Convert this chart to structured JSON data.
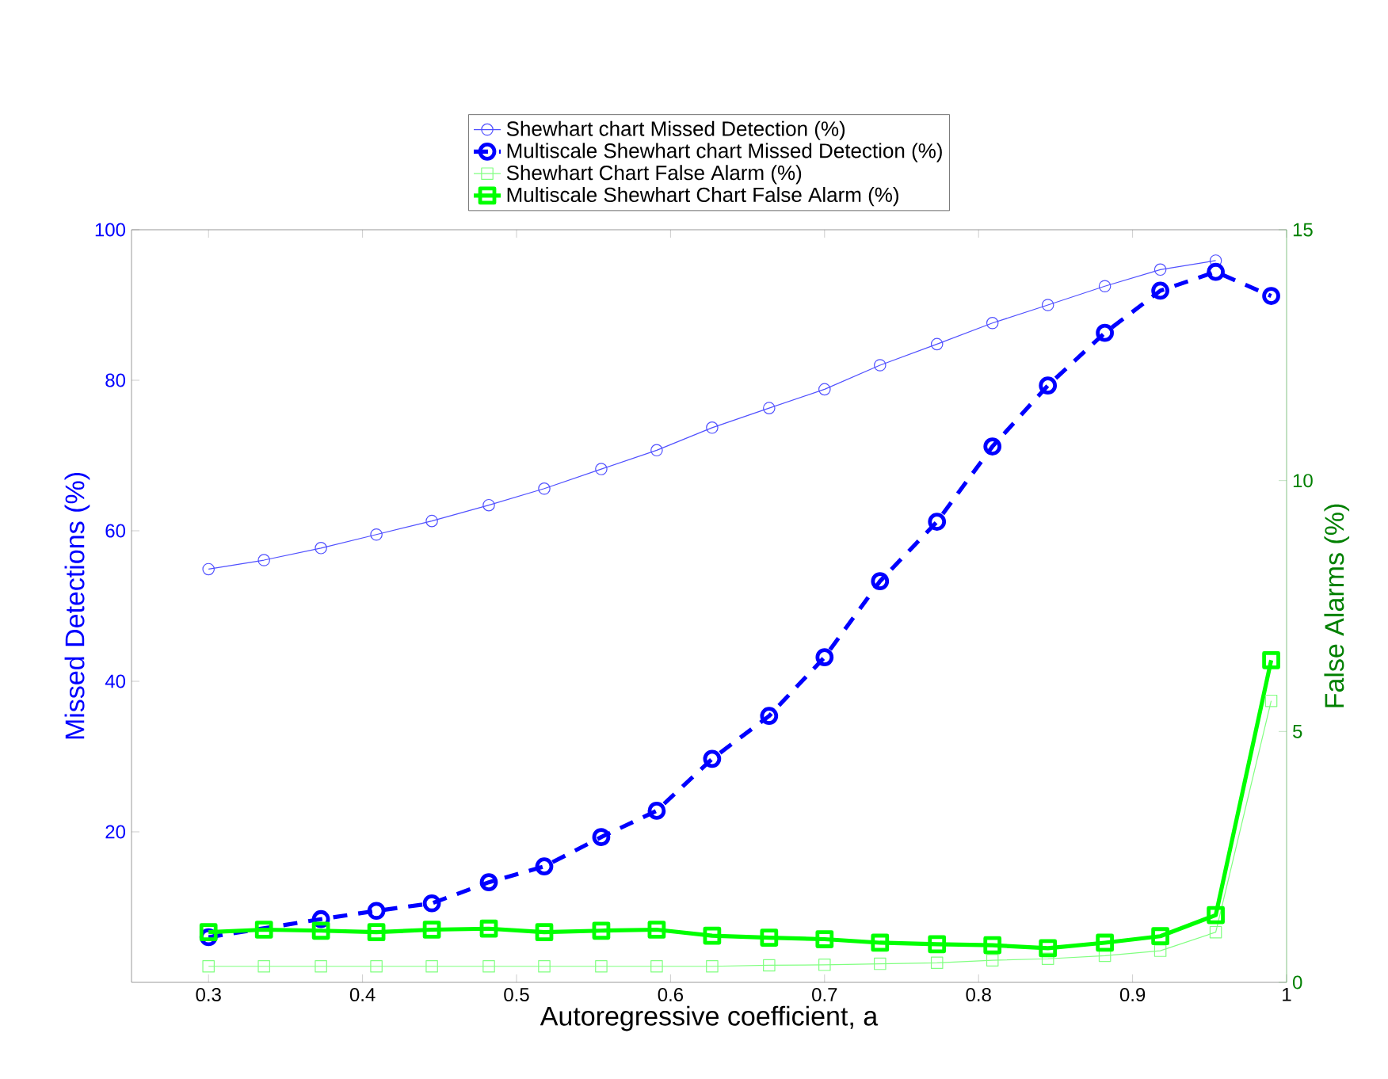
{
  "chart_data": {
    "type": "line",
    "xlabel": "Autoregressive coefficient, a",
    "ylabel": "Missed Detections (%)",
    "y2label": "False Alarms (%)",
    "x": [
      0.3,
      0.336,
      0.373,
      0.409,
      0.445,
      0.482,
      0.518,
      0.555,
      0.591,
      0.627,
      0.664,
      0.7,
      0.736,
      0.773,
      0.809,
      0.845,
      0.882,
      0.918,
      0.954,
      0.99
    ],
    "series": [
      {
        "name": "Shewhart chart Missed Detection (%)",
        "color": "#5050ff",
        "marker": "circle",
        "line_style": "solid",
        "values": [
          54.9,
          56.1,
          57.7,
          59.5,
          61.3,
          63.4,
          65.6,
          68.2,
          70.7,
          73.7,
          76.3,
          78.8,
          82.0,
          84.8,
          87.6,
          90.0,
          92.5,
          94.7,
          95.9,
          null
        ]
      },
      {
        "name": "Multiscale Shewhart chart Missed Detection (%)",
        "color": "#0000ff",
        "marker": "circle",
        "line_style": "dashed",
        "values": [
          6.0,
          null,
          8.4,
          9.5,
          10.5,
          13.3,
          15.4,
          19.3,
          22.8,
          29.7,
          35.4,
          43.2,
          53.3,
          61.2,
          71.2,
          79.3,
          86.3,
          91.9,
          94.4,
          91.2
        ]
      },
      {
        "name": "Shewhart Chart False Alarm  (%)",
        "color": "#80ff80",
        "marker": "square",
        "line_style": "solid",
        "axis": "y2",
        "values": [
          0.32,
          0.32,
          0.32,
          0.32,
          0.32,
          0.32,
          0.32,
          0.32,
          0.32,
          0.32,
          0.34,
          0.35,
          0.37,
          0.39,
          0.44,
          0.47,
          0.53,
          0.63,
          1.0,
          5.61
        ]
      },
      {
        "name": "Multiscale Shewhart Chart False Alarm  (%)",
        "color": "#00ff00",
        "marker": "square",
        "line_style": "solid",
        "axis": "y2",
        "values": [
          1.0,
          1.05,
          1.03,
          1.0,
          1.05,
          1.07,
          1.0,
          1.03,
          1.05,
          0.93,
          0.89,
          0.86,
          0.79,
          0.76,
          0.74,
          0.68,
          0.79,
          0.92,
          1.34,
          6.42
        ]
      }
    ],
    "xlim": [
      0.25,
      1
    ],
    "xticks": [
      0.3,
      0.4,
      0.5,
      0.6,
      0.7,
      0.8,
      0.9,
      1
    ],
    "ylim": [
      0,
      100
    ],
    "yticks": [
      20,
      40,
      60,
      80,
      100
    ],
    "y2lim": [
      0,
      15
    ],
    "y2ticks": [
      0,
      5,
      10,
      15
    ],
    "grid": false,
    "legend": "top"
  }
}
